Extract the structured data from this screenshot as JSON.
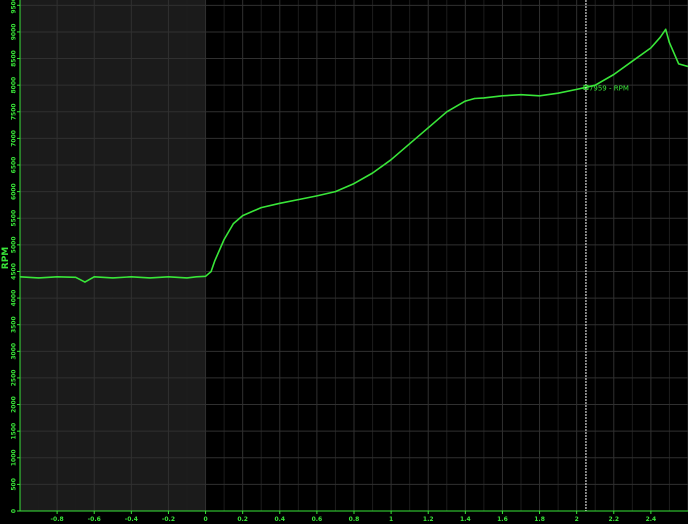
{
  "chart_data": {
    "type": "line",
    "title": "",
    "xlabel": "",
    "ylabel": "RPM",
    "xlim": [
      -1.0,
      2.6
    ],
    "ylim": [
      0,
      9600
    ],
    "x_ticks": [
      -0.8,
      -0.6,
      -0.4,
      -0.2,
      0,
      0.2,
      0.4,
      0.6,
      0.8,
      1,
      1.2,
      1.4,
      1.6,
      1.8,
      2,
      2.2,
      2.4
    ],
    "x_tick_labels": [
      "-0.8",
      "-0.6",
      "-0.4",
      "-0.2",
      "0",
      "0.2",
      "0.4",
      "0.6",
      "0.8",
      "1",
      "1.2",
      "1.4",
      "1.6",
      "1.8",
      "2",
      "2.2",
      "2.4"
    ],
    "y_ticks": [
      0,
      500,
      1000,
      1500,
      2000,
      2500,
      3000,
      3500,
      4000,
      4500,
      5000,
      5500,
      6000,
      6500,
      7000,
      7500,
      8000,
      8500,
      9000,
      9500
    ],
    "y_tick_labels": [
      "0",
      "500",
      "1000",
      "1500",
      "2000",
      "2500",
      "3000",
      "3500",
      "4000",
      "4500",
      "5000",
      "5500",
      "6000",
      "6500",
      "7000",
      "7500",
      "8000",
      "8500",
      "9000",
      "9500"
    ],
    "grid": true,
    "shaded_region": {
      "x_from": -1.0,
      "x_to": 0.0,
      "color": "#1b1b1b"
    },
    "cursor": {
      "x": 2.05,
      "value": 7959,
      "label": "7959 - RPM"
    },
    "colors": {
      "line": "#39e639",
      "grid": "#2a2a2a",
      "axis": "#39e639",
      "cursor": "#ffffff",
      "background": "#000000"
    },
    "series": [
      {
        "name": "",
        "x": [
          -1.0,
          -0.9,
          -0.8,
          -0.7,
          -0.65,
          -0.6,
          -0.5,
          -0.4,
          -0.3,
          -0.2,
          -0.1,
          -0.05,
          0.0,
          0.03,
          0.05,
          0.1,
          0.15,
          0.2,
          0.3,
          0.4,
          0.5,
          0.6,
          0.7,
          0.8,
          0.9,
          1.0,
          1.1,
          1.2,
          1.3,
          1.4,
          1.45,
          1.5,
          1.6,
          1.7,
          1.8,
          1.9,
          2.0,
          2.05,
          2.1,
          2.2,
          2.3,
          2.4,
          2.45,
          2.48,
          2.5,
          2.55,
          2.6
        ],
        "y": [
          4400,
          4380,
          4400,
          4390,
          4300,
          4400,
          4380,
          4400,
          4380,
          4400,
          4380,
          4400,
          4410,
          4500,
          4700,
          5100,
          5400,
          5550,
          5700,
          5780,
          5850,
          5920,
          6000,
          6150,
          6350,
          6600,
          6900,
          7200,
          7500,
          7700,
          7750,
          7760,
          7800,
          7820,
          7800,
          7850,
          7920,
          7959,
          8000,
          8200,
          8450,
          8700,
          8900,
          9050,
          8800,
          8400,
          8350
        ]
      }
    ]
  }
}
